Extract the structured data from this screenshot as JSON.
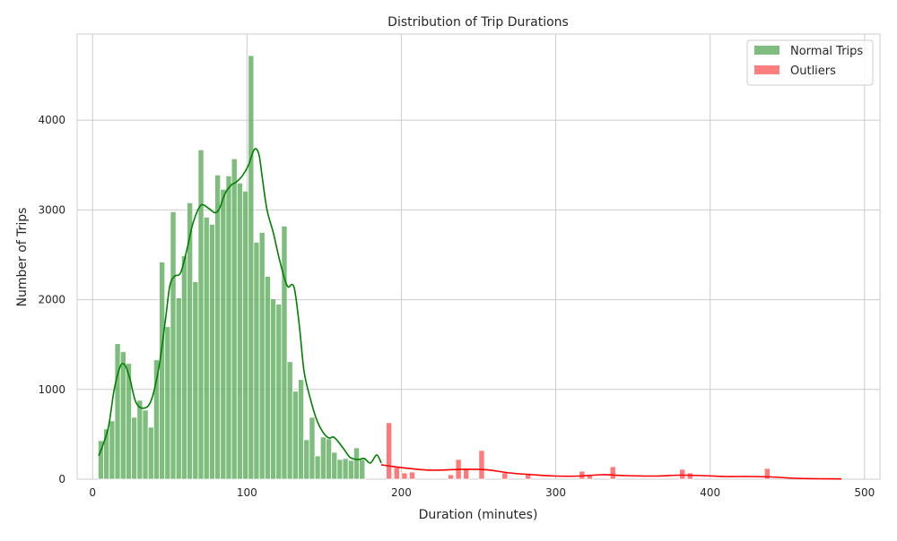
{
  "chart_data": {
    "type": "bar",
    "title": "Distribution of Trip Durations",
    "xlabel": "Duration (minutes)",
    "ylabel": "Number of Trips",
    "xlim": [
      -10,
      510
    ],
    "ylim": [
      0,
      4960
    ],
    "x_ticks": [
      0,
      100,
      200,
      300,
      400,
      500
    ],
    "y_ticks": [
      0,
      1000,
      2000,
      3000,
      4000
    ],
    "grid": true,
    "legend_position": "top-right",
    "bin_width": 3.6,
    "series": [
      {
        "name": "Normal Trips",
        "color": "#5aab5a",
        "kde_color": "#008000",
        "bin_start": 3.6,
        "values": [
          430,
          560,
          650,
          1510,
          1420,
          1290,
          690,
          880,
          770,
          580,
          1330,
          2420,
          1700,
          2980,
          2020,
          2490,
          3080,
          2200,
          3670,
          2920,
          2840,
          3390,
          3230,
          3380,
          3570,
          3300,
          3210,
          4720,
          2640,
          2750,
          2260,
          2010,
          1950,
          2820,
          1310,
          980,
          1110,
          440,
          690,
          260,
          470,
          450,
          300,
          220,
          230,
          210,
          350,
          220
        ],
        "kde": [
          [
            4,
            260
          ],
          [
            10,
            560
          ],
          [
            14,
            1000
          ],
          [
            18,
            1260
          ],
          [
            21,
            1270
          ],
          [
            24,
            1130
          ],
          [
            28,
            860
          ],
          [
            33,
            790
          ],
          [
            38,
            880
          ],
          [
            43,
            1250
          ],
          [
            47,
            1750
          ],
          [
            50,
            2150
          ],
          [
            53,
            2260
          ],
          [
            57,
            2300
          ],
          [
            61,
            2550
          ],
          [
            65,
            2850
          ],
          [
            70,
            3050
          ],
          [
            75,
            3020
          ],
          [
            79,
            2970
          ],
          [
            82,
            3010
          ],
          [
            86,
            3190
          ],
          [
            90,
            3280
          ],
          [
            93,
            3310
          ],
          [
            97,
            3380
          ],
          [
            101,
            3500
          ],
          [
            104,
            3650
          ],
          [
            106,
            3680
          ],
          [
            108,
            3600
          ],
          [
            110,
            3350
          ],
          [
            113,
            3000
          ],
          [
            117,
            2750
          ],
          [
            121,
            2450
          ],
          [
            125,
            2200
          ],
          [
            127,
            2140
          ],
          [
            129,
            2170
          ],
          [
            131,
            2100
          ],
          [
            134,
            1700
          ],
          [
            137,
            1200
          ],
          [
            141,
            900
          ],
          [
            145,
            670
          ],
          [
            149,
            530
          ],
          [
            153,
            460
          ],
          [
            156,
            470
          ],
          [
            159,
            420
          ],
          [
            163,
            330
          ],
          [
            167,
            240
          ],
          [
            172,
            220
          ],
          [
            176,
            230
          ],
          [
            180,
            180
          ],
          [
            184,
            270
          ],
          [
            187,
            180
          ]
        ]
      },
      {
        "name": "Outliers",
        "color": "#ff5a5a",
        "kde_color": "#ff0000",
        "bars": [
          [
            192,
            630
          ],
          [
            197,
            130
          ],
          [
            202,
            70
          ],
          [
            207,
            80
          ],
          [
            232,
            50
          ],
          [
            237,
            220
          ],
          [
            242,
            120
          ],
          [
            252,
            320
          ],
          [
            267,
            70
          ],
          [
            282,
            50
          ],
          [
            317,
            90
          ],
          [
            322,
            40
          ],
          [
            337,
            140
          ],
          [
            382,
            110
          ],
          [
            387,
            70
          ],
          [
            437,
            120
          ]
        ],
        "kde": [
          [
            187,
            160
          ],
          [
            195,
            140
          ],
          [
            205,
            120
          ],
          [
            220,
            100
          ],
          [
            240,
            110
          ],
          [
            255,
            105
          ],
          [
            270,
            70
          ],
          [
            285,
            50
          ],
          [
            300,
            35
          ],
          [
            315,
            35
          ],
          [
            330,
            50
          ],
          [
            345,
            40
          ],
          [
            365,
            35
          ],
          [
            380,
            45
          ],
          [
            395,
            40
          ],
          [
            410,
            30
          ],
          [
            425,
            30
          ],
          [
            440,
            25
          ],
          [
            455,
            10
          ],
          [
            470,
            5
          ],
          [
            485,
            3
          ]
        ]
      }
    ]
  }
}
